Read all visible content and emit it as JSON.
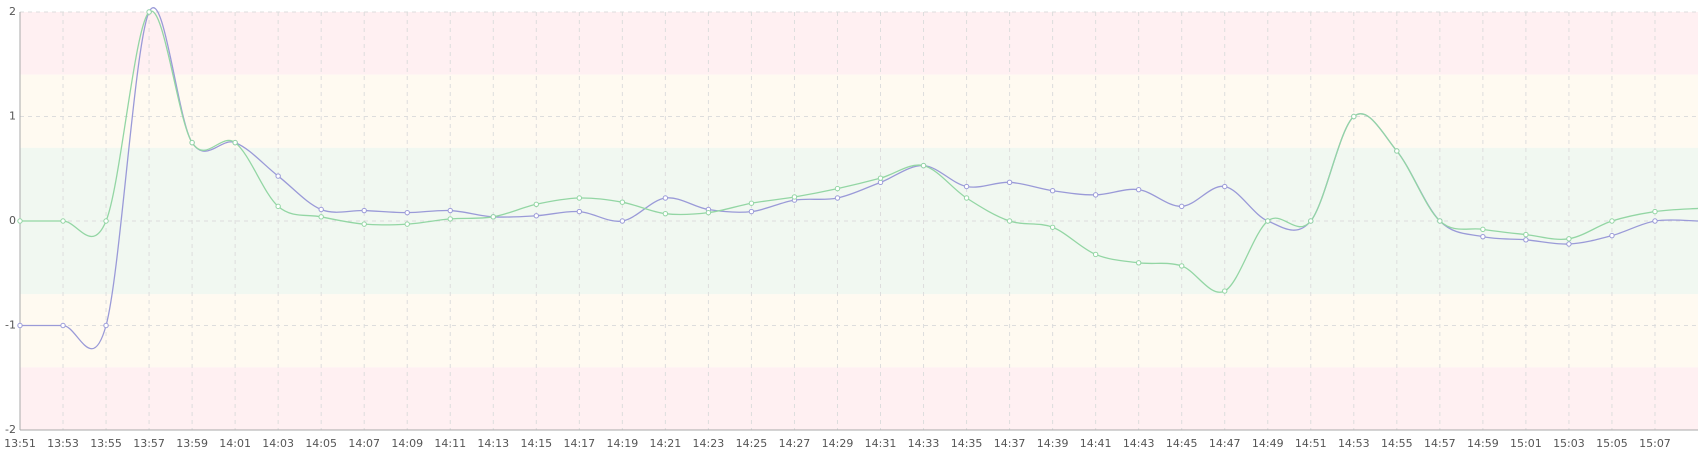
{
  "chart_data": {
    "type": "line",
    "categories": [
      "13:51",
      "13:53",
      "13:55",
      "13:57",
      "13:59",
      "14:01",
      "14:03",
      "14:05",
      "14:07",
      "14:09",
      "14:11",
      "14:13",
      "14:15",
      "14:17",
      "14:19",
      "14:21",
      "14:23",
      "14:25",
      "14:27",
      "14:29",
      "14:31",
      "14:33",
      "14:35",
      "14:37",
      "14:39",
      "14:41",
      "14:43",
      "14:45",
      "14:47",
      "14:49",
      "14:51",
      "14:53",
      "14:55",
      "14:57",
      "14:59",
      "15:01",
      "15:03",
      "15:05",
      "15:07",
      null
    ],
    "series": [
      {
        "color": "#9a9ad8",
        "values": [
          -1,
          -1,
          -1,
          2,
          0.75,
          0.75,
          0.43,
          0.11,
          0.1,
          0.08,
          0.1,
          0.04,
          0.05,
          0.09,
          0,
          0.22,
          0.11,
          0.09,
          0.2,
          0.22,
          0.37,
          0.53,
          0.33,
          0.37,
          0.29,
          0.25,
          0.3,
          0.14,
          0.33,
          0,
          0,
          1,
          0.67,
          0,
          -0.15,
          -0.18,
          -0.22,
          -0.14,
          0,
          0
        ]
      },
      {
        "color": "#93d6a4",
        "values": [
          0,
          0,
          0,
          2,
          0.75,
          0.75,
          0.14,
          0.04,
          -0.03,
          -0.03,
          0.02,
          0.04,
          0.16,
          0.22,
          0.18,
          0.07,
          0.08,
          0.17,
          0.23,
          0.31,
          0.41,
          0.53,
          0.22,
          0,
          -0.06,
          -0.32,
          -0.4,
          -0.43,
          -0.67,
          0,
          0,
          1,
          0.67,
          0,
          -0.08,
          -0.13,
          -0.17,
          0,
          0.09,
          0.12
        ]
      }
    ],
    "ylim": [
      -2,
      2
    ],
    "yticks": [
      -2,
      -1,
      0,
      1,
      2
    ],
    "grid": true,
    "bands": [
      {
        "from": 1.4,
        "to": 2,
        "color": "#fff0f2"
      },
      {
        "from": 0.7,
        "to": 1.4,
        "color": "#fffaf1"
      },
      {
        "from": -0.7,
        "to": 0.7,
        "color": "#f1f8f1"
      },
      {
        "from": -1.4,
        "to": -0.7,
        "color": "#fffaf1"
      },
      {
        "from": -2,
        "to": -1.4,
        "color": "#fff0f2"
      }
    ]
  }
}
